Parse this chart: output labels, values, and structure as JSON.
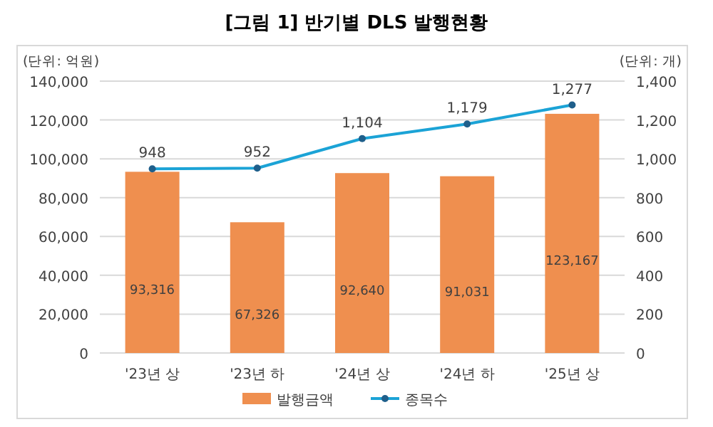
{
  "chart_data": {
    "type": "bar",
    "title": "[그림 1] 반기별 DLS 발행현황",
    "ylabel": "(단위: 억원)",
    "y2label": "(단위: 개)",
    "categories": [
      "'23년 상",
      "'23년 하",
      "'24년 상",
      "'24년 하",
      "'25년 상"
    ],
    "series": [
      {
        "name": "발행금액",
        "color": "#ef8f4f",
        "values": [
          93316,
          67326,
          92640,
          91031,
          123167
        ],
        "value_labels": [
          "93,316",
          "67,326",
          "92,640",
          "91,031",
          "123,167"
        ]
      },
      {
        "name": "종목수",
        "type": "line",
        "axis": "y2",
        "color": "#1ba3d6",
        "marker": "circle",
        "values": [
          948,
          952,
          1104,
          1179,
          1277
        ],
        "value_labels": [
          "948",
          "952",
          "1,104",
          "1,179",
          "1,277"
        ]
      }
    ],
    "ylim": [
      0,
      140000
    ],
    "yticks": [
      {
        "value": 0,
        "label": "0"
      },
      {
        "value": 20000,
        "label": "20,000"
      },
      {
        "value": 40000,
        "label": "40,000"
      },
      {
        "value": 60000,
        "label": "60,000"
      },
      {
        "value": 80000,
        "label": "80,000"
      },
      {
        "value": 100000,
        "label": "100,000"
      },
      {
        "value": 120000,
        "label": "120,000"
      },
      {
        "value": 140000,
        "label": "140,000"
      }
    ],
    "y2lim": [
      0,
      1400
    ],
    "y2ticks": [
      {
        "value": 0,
        "label": "0"
      },
      {
        "value": 200,
        "label": "200"
      },
      {
        "value": 400,
        "label": "400"
      },
      {
        "value": 600,
        "label": "600"
      },
      {
        "value": 800,
        "label": "800"
      },
      {
        "value": 1000,
        "label": "1,000"
      },
      {
        "value": 1200,
        "label": "1,200"
      },
      {
        "value": 1400,
        "label": "1,400"
      }
    ],
    "grid": "y",
    "legend": "bottom"
  }
}
